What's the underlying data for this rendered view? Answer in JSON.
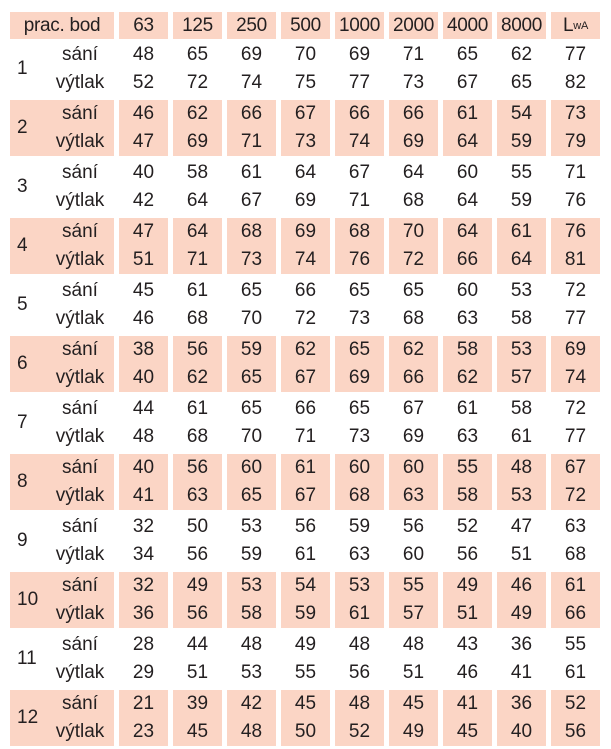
{
  "colors": {
    "shade": "#fbd5c5",
    "text": "#231f20"
  },
  "header": {
    "first": "prac. bod",
    "bands": [
      "63",
      "125",
      "250",
      "500",
      "1000",
      "2000",
      "4000",
      "8000"
    ],
    "lwa_main": "L",
    "lwa_sub": "wA"
  },
  "labels": {
    "suction": "sání",
    "discharge": "výtlak"
  },
  "rows": [
    {
      "point": "1",
      "shaded": false,
      "sani": [
        "48",
        "65",
        "69",
        "70",
        "69",
        "71",
        "65",
        "62",
        "77"
      ],
      "vytlak": [
        "52",
        "72",
        "74",
        "75",
        "77",
        "73",
        "67",
        "65",
        "82"
      ]
    },
    {
      "point": "2",
      "shaded": true,
      "sani": [
        "46",
        "62",
        "66",
        "67",
        "66",
        "66",
        "61",
        "54",
        "73"
      ],
      "vytlak": [
        "47",
        "69",
        "71",
        "73",
        "74",
        "69",
        "64",
        "59",
        "79"
      ]
    },
    {
      "point": "3",
      "shaded": false,
      "sani": [
        "40",
        "58",
        "61",
        "64",
        "67",
        "64",
        "60",
        "55",
        "71"
      ],
      "vytlak": [
        "42",
        "64",
        "67",
        "69",
        "71",
        "68",
        "64",
        "59",
        "76"
      ]
    },
    {
      "point": "4",
      "shaded": true,
      "sani": [
        "47",
        "64",
        "68",
        "69",
        "68",
        "70",
        "64",
        "61",
        "76"
      ],
      "vytlak": [
        "51",
        "71",
        "73",
        "74",
        "76",
        "72",
        "66",
        "64",
        "81"
      ]
    },
    {
      "point": "5",
      "shaded": false,
      "sani": [
        "45",
        "61",
        "65",
        "66",
        "65",
        "65",
        "60",
        "53",
        "72"
      ],
      "vytlak": [
        "46",
        "68",
        "70",
        "72",
        "73",
        "68",
        "63",
        "58",
        "77"
      ]
    },
    {
      "point": "6",
      "shaded": true,
      "sani": [
        "38",
        "56",
        "59",
        "62",
        "65",
        "62",
        "58",
        "53",
        "69"
      ],
      "vytlak": [
        "40",
        "62",
        "65",
        "67",
        "69",
        "66",
        "62",
        "57",
        "74"
      ]
    },
    {
      "point": "7",
      "shaded": false,
      "sani": [
        "44",
        "61",
        "65",
        "66",
        "65",
        "67",
        "61",
        "58",
        "72"
      ],
      "vytlak": [
        "48",
        "68",
        "70",
        "71",
        "73",
        "69",
        "63",
        "61",
        "77"
      ]
    },
    {
      "point": "8",
      "shaded": true,
      "sani": [
        "40",
        "56",
        "60",
        "61",
        "60",
        "60",
        "55",
        "48",
        "67"
      ],
      "vytlak": [
        "41",
        "63",
        "65",
        "67",
        "68",
        "63",
        "58",
        "53",
        "72"
      ]
    },
    {
      "point": "9",
      "shaded": false,
      "sani": [
        "32",
        "50",
        "53",
        "56",
        "59",
        "56",
        "52",
        "47",
        "63"
      ],
      "vytlak": [
        "34",
        "56",
        "59",
        "61",
        "63",
        "60",
        "56",
        "51",
        "68"
      ]
    },
    {
      "point": "10",
      "shaded": true,
      "sani": [
        "32",
        "49",
        "53",
        "54",
        "53",
        "55",
        "49",
        "46",
        "61"
      ],
      "vytlak": [
        "36",
        "56",
        "58",
        "59",
        "61",
        "57",
        "51",
        "49",
        "66"
      ]
    },
    {
      "point": "11",
      "shaded": false,
      "sani": [
        "28",
        "44",
        "48",
        "49",
        "48",
        "48",
        "43",
        "36",
        "55"
      ],
      "vytlak": [
        "29",
        "51",
        "53",
        "55",
        "56",
        "51",
        "46",
        "41",
        "61"
      ]
    },
    {
      "point": "12",
      "shaded": true,
      "sani": [
        "21",
        "39",
        "42",
        "45",
        "48",
        "45",
        "41",
        "36",
        "52"
      ],
      "vytlak": [
        "23",
        "45",
        "48",
        "50",
        "52",
        "49",
        "45",
        "40",
        "56"
      ]
    }
  ]
}
